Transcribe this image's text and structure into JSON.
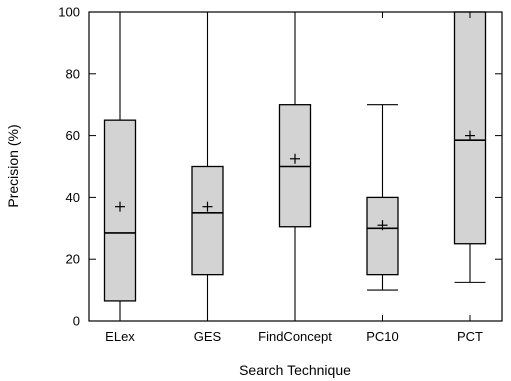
{
  "chart_data": {
    "type": "box",
    "xlabel": "Search Technique",
    "ylabel": "Precision (%)",
    "ylim": [
      0,
      100
    ],
    "yticks": [
      0,
      20,
      40,
      60,
      80,
      100
    ],
    "grid": false,
    "categories": [
      "ELex",
      "GES",
      "FindConcept",
      "PC10",
      "PCT"
    ],
    "boxes": [
      {
        "name": "ELex",
        "min": 0,
        "q1": 6.5,
        "median": 28.5,
        "q3": 65,
        "max": 100,
        "mean": 37
      },
      {
        "name": "GES",
        "min": 0,
        "q1": 15,
        "median": 35,
        "q3": 50,
        "max": 100,
        "mean": 37
      },
      {
        "name": "FindConcept",
        "min": 0,
        "q1": 30.5,
        "median": 50,
        "q3": 70,
        "max": 100,
        "mean": 52.5
      },
      {
        "name": "PC10",
        "min": 10,
        "q1": 15,
        "median": 30,
        "q3": 40,
        "max": 70,
        "mean": 31
      },
      {
        "name": "PCT",
        "min": 12.5,
        "q1": 25,
        "median": 58.5,
        "q3": 100,
        "max": 100,
        "mean": 60
      }
    ]
  }
}
